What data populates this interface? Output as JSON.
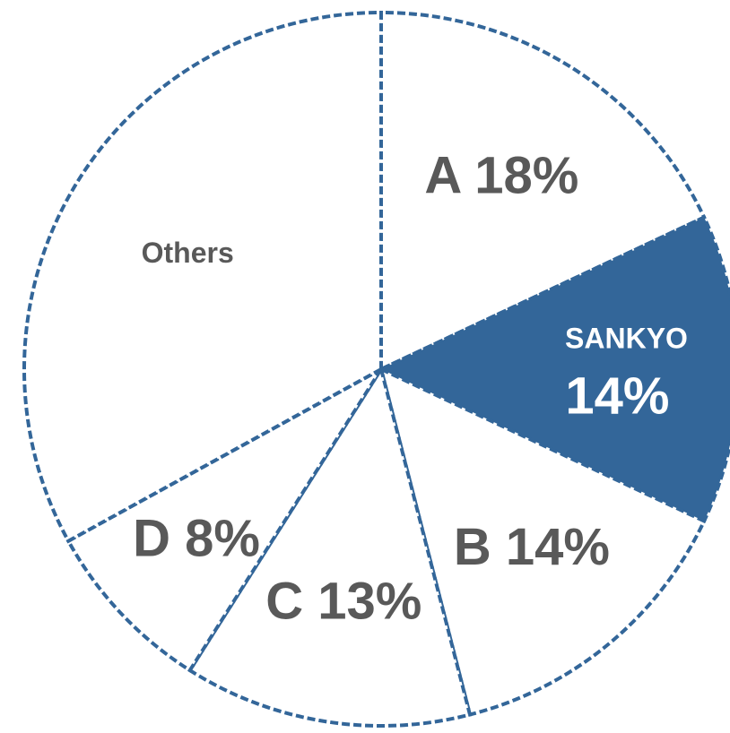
{
  "chart_data": {
    "type": "pie",
    "categories": [
      "A",
      "SANKYO",
      "B",
      "C",
      "D",
      "Others"
    ],
    "values": [
      18,
      14,
      14,
      13,
      8,
      33
    ],
    "value_labels": [
      "18%",
      "14%",
      "14%",
      "13%",
      "8%",
      null
    ],
    "colors": [
      "#ffffff",
      "#336699",
      "#ffffff",
      "#ffffff",
      "#ffffff",
      "#ffffff"
    ]
  }
}
